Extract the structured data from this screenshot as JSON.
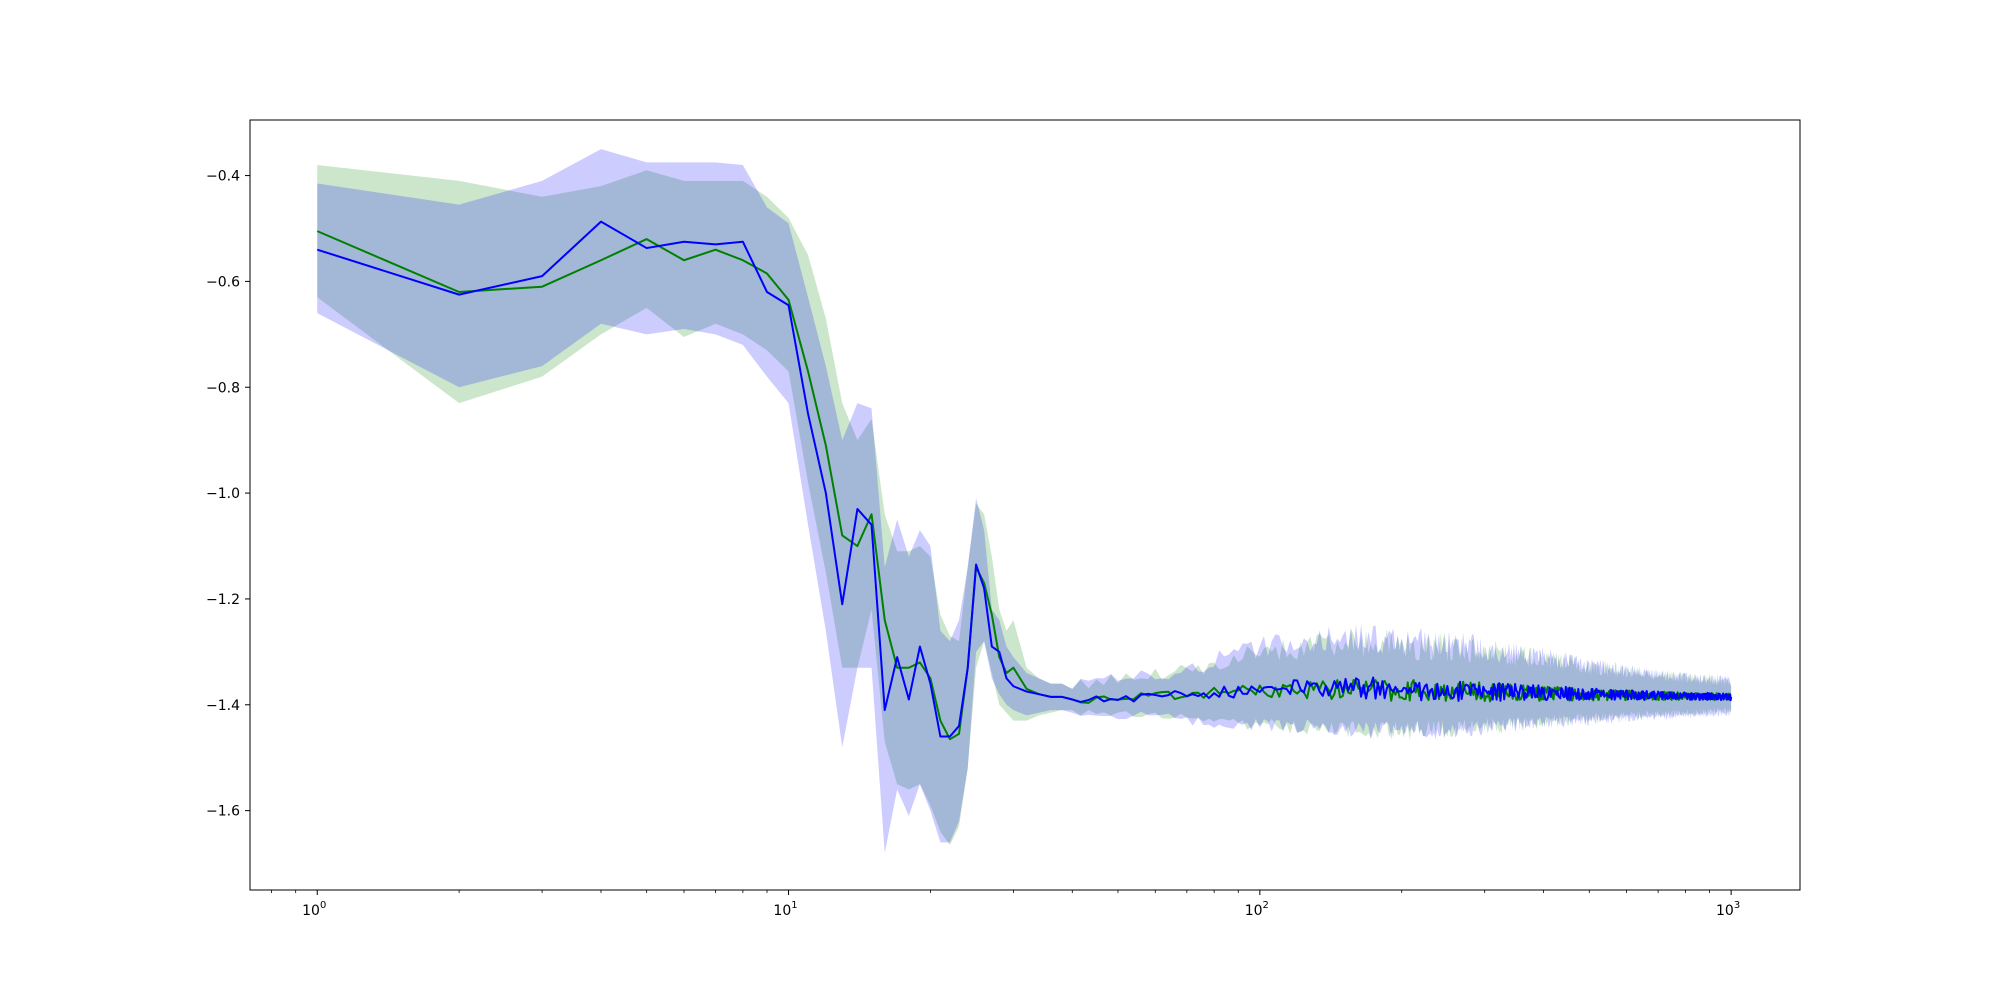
{
  "chart_data": {
    "type": "line",
    "title": "",
    "xlabel": "",
    "ylabel": "",
    "x_scale": "log",
    "xlim": [
      0.72,
      1400
    ],
    "ylim": [
      -1.75,
      -0.295
    ],
    "grid": false,
    "legend": "none",
    "x_ticks": [
      {
        "value": 1,
        "base": "10",
        "exp": "0"
      },
      {
        "value": 10,
        "base": "10",
        "exp": "1"
      },
      {
        "value": 100,
        "base": "10",
        "exp": "2"
      },
      {
        "value": 1000,
        "base": "10",
        "exp": "3"
      }
    ],
    "y_ticks": [
      {
        "value": -0.4,
        "label": "−0.4"
      },
      {
        "value": -0.6,
        "label": "−0.6"
      },
      {
        "value": -0.8,
        "label": "−0.8"
      },
      {
        "value": -1.0,
        "label": "−1.0"
      },
      {
        "value": -1.2,
        "label": "−1.2"
      },
      {
        "value": -1.4,
        "label": "−1.4"
      },
      {
        "value": -1.6,
        "label": "−1.6"
      }
    ],
    "series": [
      {
        "color": "#008000",
        "band_color": "#008000",
        "band_opacity": 0.2,
        "x": [
          1,
          2,
          3,
          4,
          5,
          6,
          7,
          8,
          9,
          10,
          11,
          12,
          13,
          14,
          15,
          16,
          17,
          18,
          19,
          20,
          21,
          22,
          23,
          24,
          25,
          26,
          27,
          28,
          29,
          30,
          32,
          34,
          36,
          38,
          40,
          45,
          50,
          60,
          70,
          80,
          100,
          150,
          200,
          300,
          500,
          700,
          1000
        ],
        "y": [
          -0.505,
          -0.62,
          -0.61,
          -0.56,
          -0.52,
          -0.56,
          -0.54,
          -0.56,
          -0.585,
          -0.635,
          -0.77,
          -0.91,
          -1.08,
          -1.1,
          -1.04,
          -1.24,
          -1.33,
          -1.33,
          -1.32,
          -1.35,
          -1.43,
          -1.465,
          -1.455,
          -1.33,
          -1.14,
          -1.17,
          -1.23,
          -1.31,
          -1.34,
          -1.33,
          -1.37,
          -1.38,
          -1.385,
          -1.385,
          -1.39,
          -1.39,
          -1.385,
          -1.385,
          -1.38,
          -1.378,
          -1.372,
          -1.37,
          -1.372,
          -1.376,
          -1.381,
          -1.383,
          -1.385
        ],
        "lower": [
          -0.63,
          -0.83,
          -0.78,
          -0.7,
          -0.65,
          -0.705,
          -0.68,
          -0.7,
          -0.73,
          -0.77,
          -0.98,
          -1.15,
          -1.33,
          -1.33,
          -1.22,
          -1.47,
          -1.55,
          -1.56,
          -1.55,
          -1.59,
          -1.64,
          -1.665,
          -1.63,
          -1.52,
          -1.33,
          -1.28,
          -1.34,
          -1.4,
          -1.415,
          -1.43,
          -1.43,
          -1.42,
          -1.415,
          -1.41,
          -1.41,
          -1.41,
          -1.41,
          -1.41,
          -1.415,
          -1.425,
          -1.425,
          -1.43,
          -1.43,
          -1.425,
          -1.415,
          -1.41,
          -1.405
        ],
        "upper": [
          -0.38,
          -0.41,
          -0.44,
          -0.42,
          -0.39,
          -0.41,
          -0.41,
          -0.41,
          -0.44,
          -0.48,
          -0.55,
          -0.67,
          -0.83,
          -0.9,
          -0.86,
          -1.04,
          -1.11,
          -1.11,
          -1.1,
          -1.12,
          -1.23,
          -1.27,
          -1.28,
          -1.14,
          -1.02,
          -1.04,
          -1.12,
          -1.22,
          -1.26,
          -1.24,
          -1.33,
          -1.35,
          -1.36,
          -1.36,
          -1.37,
          -1.37,
          -1.36,
          -1.355,
          -1.35,
          -1.34,
          -1.32,
          -1.31,
          -1.315,
          -1.325,
          -1.345,
          -1.355,
          -1.365
        ]
      },
      {
        "color": "#0000ff",
        "band_color": "#0000ff",
        "band_opacity": 0.2,
        "x": [
          1,
          2,
          3,
          4,
          5,
          6,
          7,
          8,
          9,
          10,
          11,
          12,
          13,
          14,
          15,
          16,
          17,
          18,
          19,
          20,
          21,
          22,
          23,
          24,
          25,
          26,
          27,
          28,
          29,
          30,
          32,
          34,
          36,
          38,
          40,
          45,
          50,
          60,
          70,
          80,
          100,
          150,
          200,
          300,
          500,
          700,
          1000
        ],
        "y": [
          -0.54,
          -0.625,
          -0.59,
          -0.487,
          -0.537,
          -0.525,
          -0.53,
          -0.525,
          -0.62,
          -0.645,
          -0.85,
          -1.0,
          -1.21,
          -1.03,
          -1.06,
          -1.41,
          -1.31,
          -1.39,
          -1.29,
          -1.36,
          -1.46,
          -1.46,
          -1.44,
          -1.33,
          -1.135,
          -1.18,
          -1.29,
          -1.3,
          -1.35,
          -1.365,
          -1.375,
          -1.38,
          -1.385,
          -1.385,
          -1.39,
          -1.385,
          -1.39,
          -1.38,
          -1.385,
          -1.378,
          -1.37,
          -1.368,
          -1.37,
          -1.375,
          -1.38,
          -1.383,
          -1.385
        ],
        "lower": [
          -0.66,
          -0.8,
          -0.76,
          -0.68,
          -0.7,
          -0.69,
          -0.7,
          -0.72,
          -0.78,
          -0.83,
          -1.06,
          -1.26,
          -1.48,
          -1.33,
          -1.33,
          -1.68,
          -1.56,
          -1.61,
          -1.55,
          -1.6,
          -1.66,
          -1.66,
          -1.62,
          -1.52,
          -1.3,
          -1.28,
          -1.35,
          -1.38,
          -1.4,
          -1.41,
          -1.42,
          -1.415,
          -1.41,
          -1.41,
          -1.415,
          -1.41,
          -1.415,
          -1.41,
          -1.42,
          -1.425,
          -1.425,
          -1.43,
          -1.43,
          -1.425,
          -1.42,
          -1.415,
          -1.41
        ],
        "upper": [
          -0.415,
          -0.455,
          -0.41,
          -0.35,
          -0.375,
          -0.375,
          -0.375,
          -0.38,
          -0.46,
          -0.49,
          -0.63,
          -0.76,
          -0.9,
          -0.83,
          -0.84,
          -1.14,
          -1.05,
          -1.12,
          -1.07,
          -1.1,
          -1.26,
          -1.28,
          -1.24,
          -1.14,
          -1.01,
          -1.07,
          -1.22,
          -1.24,
          -1.29,
          -1.31,
          -1.34,
          -1.35,
          -1.36,
          -1.36,
          -1.37,
          -1.365,
          -1.36,
          -1.355,
          -1.35,
          -1.33,
          -1.31,
          -1.3,
          -1.31,
          -1.32,
          -1.34,
          -1.355,
          -1.365
        ]
      }
    ]
  }
}
